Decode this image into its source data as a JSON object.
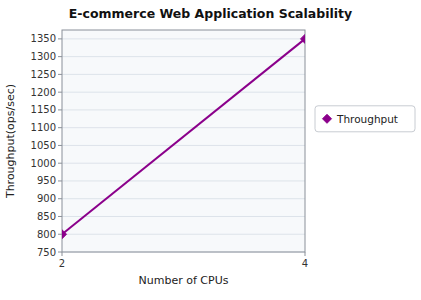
{
  "chart_data": {
    "type": "line",
    "title": "E-commerce Web Application Scalability",
    "xlabel": "Number of CPUs",
    "ylabel": "Throughput(ops/sec)",
    "x": [
      2,
      4
    ],
    "series": [
      {
        "name": "Throughput",
        "color": "#8B008B",
        "marker": "diamond",
        "values": [
          800,
          1350
        ]
      }
    ],
    "xlim": [
      2,
      4
    ],
    "ylim": [
      750,
      1375
    ],
    "xticks": [
      2,
      4
    ],
    "yticks": [
      750,
      800,
      850,
      900,
      950,
      1000,
      1050,
      1100,
      1150,
      1200,
      1250,
      1300,
      1350
    ],
    "grid": true,
    "legend": "right"
  }
}
